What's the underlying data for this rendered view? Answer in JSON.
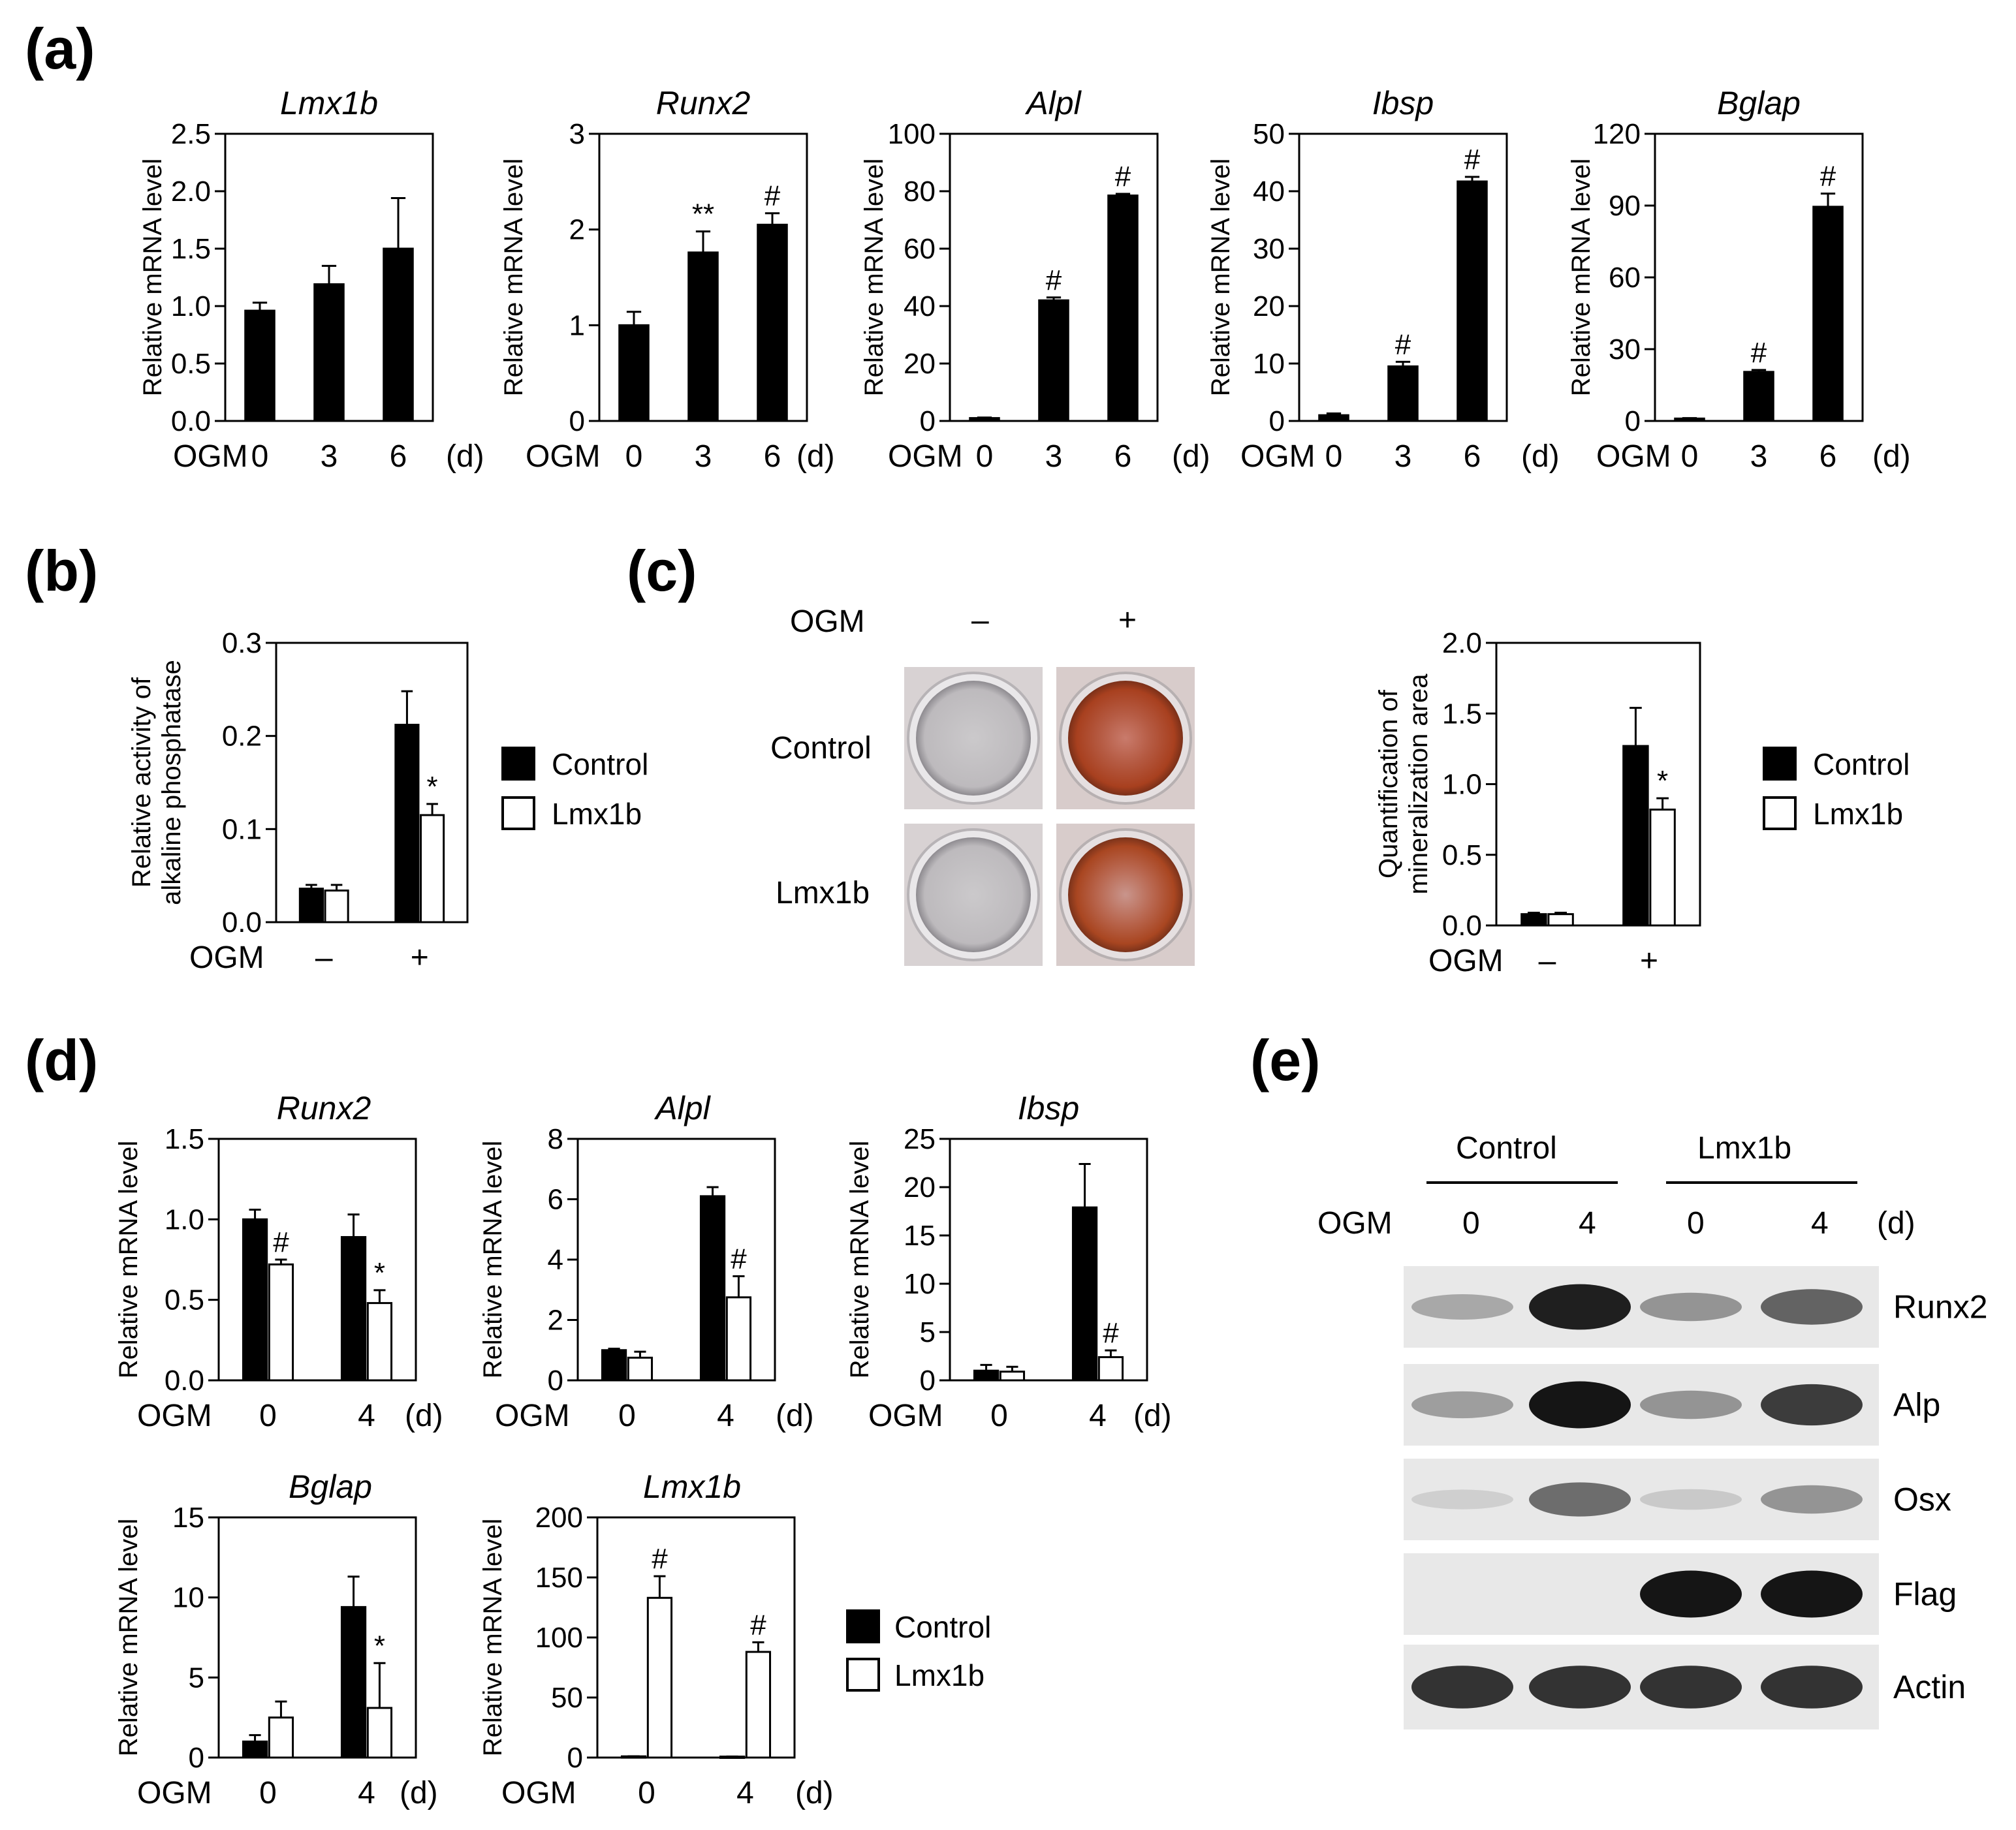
{
  "panel_labels": [
    "(a)",
    "(b)",
    "(c)",
    "(d)",
    "(e)"
  ],
  "legend": {
    "control": "Control",
    "lmx1b": "Lmx1b"
  },
  "ogm_label": "OGM",
  "day_unit": "(d)",
  "chart_data": [
    {
      "id": "a1",
      "type": "bar",
      "title": "Lmx1b",
      "ylabel": "Relative mRNA level",
      "ylim": [
        0,
        2.5
      ],
      "yticks": [
        "0.0",
        "0.5",
        "1.0",
        "1.5",
        "2.0",
        "2.5"
      ],
      "categories": [
        "0",
        "3",
        "6"
      ],
      "series": [
        {
          "values": [
            0.96,
            1.19,
            1.5
          ],
          "errors": [
            0.07,
            0.16,
            0.44
          ],
          "sig": [
            "",
            "",
            ""
          ]
        }
      ]
    },
    {
      "id": "a2",
      "type": "bar",
      "title": "Runx2",
      "ylabel": "Relative mRNA level",
      "ylim": [
        0,
        3
      ],
      "yticks": [
        "0",
        "1",
        "2",
        "3"
      ],
      "categories": [
        "0",
        "3",
        "6"
      ],
      "series": [
        {
          "values": [
            1.0,
            1.76,
            2.05
          ],
          "errors": [
            0.14,
            0.22,
            0.12
          ],
          "sig": [
            "",
            "**",
            "#"
          ]
        }
      ]
    },
    {
      "id": "a3",
      "type": "bar",
      "title": "Alpl",
      "ylabel": "Relative mRNA level",
      "ylim": [
        0,
        100
      ],
      "yticks": [
        "0",
        "20",
        "40",
        "60",
        "80",
        "100"
      ],
      "categories": [
        "0",
        "3",
        "6"
      ],
      "series": [
        {
          "values": [
            1.0,
            42.0,
            78.5
          ],
          "errors": [
            0.2,
            1.0,
            0.6
          ],
          "sig": [
            "",
            "#",
            "#"
          ]
        }
      ]
    },
    {
      "id": "a4",
      "type": "bar",
      "title": "Ibsp",
      "ylabel": "Relative mRNA level",
      "ylim": [
        0,
        50
      ],
      "yticks": [
        "0",
        "10",
        "20",
        "30",
        "40",
        "50"
      ],
      "categories": [
        "0",
        "3",
        "6"
      ],
      "series": [
        {
          "values": [
            1.0,
            9.5,
            41.7
          ],
          "errors": [
            0.3,
            0.8,
            0.8
          ],
          "sig": [
            "",
            "#",
            "#"
          ]
        }
      ]
    },
    {
      "id": "a5",
      "type": "bar",
      "title": "Bglap",
      "ylabel": "Relative mRNA level",
      "ylim": [
        0,
        120
      ],
      "yticks": [
        "0",
        "30",
        "60",
        "90",
        "120"
      ],
      "categories": [
        "0",
        "3",
        "6"
      ],
      "series": [
        {
          "values": [
            1.0,
            20.5,
            89.5
          ],
          "errors": [
            0.2,
            0.8,
            5.5
          ],
          "sig": [
            "",
            "#",
            "#"
          ]
        }
      ]
    },
    {
      "id": "b",
      "type": "bar",
      "title": "",
      "ylabel": "Relative activity of alkaline phosphatase",
      "ylim": [
        0,
        0.3
      ],
      "yticks": [
        "0.0",
        "0.1",
        "0.2",
        "0.3"
      ],
      "categories": [
        "–",
        "+"
      ],
      "series": [
        {
          "name": "Control",
          "values": [
            0.036,
            0.212
          ],
          "errors": [
            0.004,
            0.036
          ],
          "sig": [
            "",
            ""
          ]
        },
        {
          "name": "Lmx1b",
          "values": [
            0.034,
            0.115
          ],
          "errors": [
            0.006,
            0.012
          ],
          "sig": [
            "",
            "*"
          ]
        }
      ]
    },
    {
      "id": "c",
      "type": "bar",
      "title": "",
      "ylabel": "Quantification of mineralization area",
      "ylim": [
        0,
        2.0
      ],
      "yticks": [
        "0.0",
        "0.5",
        "1.0",
        "1.5",
        "2.0"
      ],
      "categories": [
        "–",
        "+"
      ],
      "series": [
        {
          "name": "Control",
          "values": [
            0.08,
            1.27
          ],
          "errors": [
            0.01,
            0.27
          ],
          "sig": [
            "",
            ""
          ]
        },
        {
          "name": "Lmx1b",
          "values": [
            0.08,
            0.82
          ],
          "errors": [
            0.01,
            0.08
          ],
          "sig": [
            "",
            "*"
          ]
        }
      ]
    },
    {
      "id": "d1",
      "type": "bar",
      "title": "Runx2",
      "ylabel": "Relative mRNA level",
      "ylim": [
        0,
        1.5
      ],
      "yticks": [
        "0.0",
        "0.5",
        "1.0",
        "1.5"
      ],
      "categories": [
        "0",
        "4"
      ],
      "series": [
        {
          "name": "Control",
          "values": [
            1.0,
            0.89
          ],
          "errors": [
            0.06,
            0.14
          ],
          "sig": [
            "",
            ""
          ]
        },
        {
          "name": "Lmx1b",
          "values": [
            0.72,
            0.48
          ],
          "errors": [
            0.03,
            0.08
          ],
          "sig": [
            "#",
            "*"
          ]
        }
      ]
    },
    {
      "id": "d2",
      "type": "bar",
      "title": "Alpl",
      "ylabel": "Relative mRNA level",
      "ylim": [
        0,
        8
      ],
      "yticks": [
        "0",
        "2",
        "4",
        "6",
        "8"
      ],
      "categories": [
        "0",
        "4"
      ],
      "series": [
        {
          "name": "Control",
          "values": [
            1.0,
            6.1
          ],
          "errors": [
            0.05,
            0.3
          ],
          "sig": [
            "",
            ""
          ]
        },
        {
          "name": "Lmx1b",
          "values": [
            0.75,
            2.75
          ],
          "errors": [
            0.2,
            0.7
          ],
          "sig": [
            "",
            "#"
          ]
        }
      ]
    },
    {
      "id": "d3",
      "type": "bar",
      "title": "Ibsp",
      "ylabel": "Relative mRNA level",
      "ylim": [
        0,
        25
      ],
      "yticks": [
        "0",
        "5",
        "10",
        "15",
        "20",
        "25"
      ],
      "categories": [
        "0",
        "4"
      ],
      "series": [
        {
          "name": "Control",
          "values": [
            1.0,
            17.9
          ],
          "errors": [
            0.6,
            4.5
          ],
          "sig": [
            "",
            ""
          ]
        },
        {
          "name": "Lmx1b",
          "values": [
            0.9,
            2.4
          ],
          "errors": [
            0.5,
            0.7
          ],
          "sig": [
            "",
            "#"
          ]
        }
      ]
    },
    {
      "id": "d4",
      "type": "bar",
      "title": "Bglap",
      "ylabel": "Relative mRNA level",
      "ylim": [
        0,
        15
      ],
      "yticks": [
        "0",
        "5",
        "10",
        "15"
      ],
      "categories": [
        "0",
        "4"
      ],
      "series": [
        {
          "name": "Control",
          "values": [
            1.0,
            9.4
          ],
          "errors": [
            0.4,
            1.9
          ],
          "sig": [
            "",
            ""
          ]
        },
        {
          "name": "Lmx1b",
          "values": [
            2.5,
            3.1
          ],
          "errors": [
            1.0,
            2.8
          ],
          "sig": [
            "",
            "*"
          ]
        }
      ]
    },
    {
      "id": "d5",
      "type": "bar",
      "title": "Lmx1b",
      "ylabel": "Relative mRNA level",
      "ylim": [
        0,
        200
      ],
      "yticks": [
        "0",
        "50",
        "100",
        "150",
        "200"
      ],
      "categories": [
        "0",
        "4"
      ],
      "series": [
        {
          "name": "Control",
          "values": [
            1.0,
            0.8
          ],
          "errors": [
            0.1,
            0.1
          ],
          "sig": [
            "",
            ""
          ]
        },
        {
          "name": "Lmx1b",
          "values": [
            133,
            88
          ],
          "errors": [
            18,
            8
          ],
          "sig": [
            "#",
            "#"
          ]
        }
      ]
    }
  ],
  "panel_c_image": {
    "col_labels": [
      "–",
      "+"
    ],
    "row_labels": [
      "Control",
      "Lmx1b"
    ]
  },
  "panel_e_blot": {
    "group_labels": [
      "Control",
      "Lmx1b"
    ],
    "lane_labels": [
      "0",
      "4",
      "0",
      "4"
    ],
    "bands": [
      {
        "label": "Runx2",
        "intensity": [
          0.25,
          0.95,
          0.35,
          0.6
        ]
      },
      {
        "label": "Alp",
        "intensity": [
          0.3,
          1.0,
          0.35,
          0.8
        ]
      },
      {
        "label": "Osx",
        "intensity": [
          0.05,
          0.55,
          0.08,
          0.35
        ]
      },
      {
        "label": "Flag",
        "intensity": [
          0.0,
          0.0,
          1.0,
          1.0
        ]
      },
      {
        "label": "Actin",
        "intensity": [
          0.85,
          0.85,
          0.85,
          0.85
        ]
      }
    ]
  }
}
